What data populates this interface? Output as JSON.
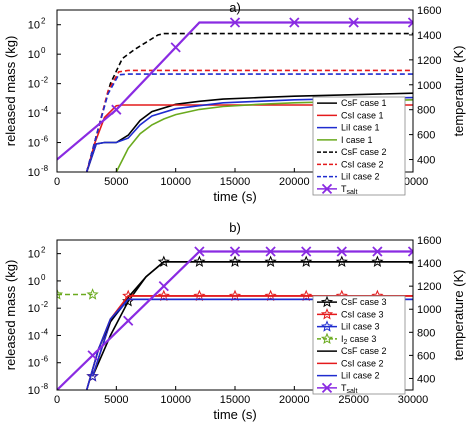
{
  "chart_data": [
    {
      "type": "line",
      "panel_label": "a)",
      "xlabel": "time (s)",
      "ylabel": "released mass (kg)",
      "y2label": "temperature (K)",
      "xlim": [
        0,
        30000
      ],
      "ylim_log10": [
        -8,
        3
      ],
      "y2lim": [
        300,
        1600
      ],
      "xticks": [
        0,
        5000,
        10000,
        15000,
        20000,
        25000,
        30000
      ],
      "xtick_labels": [
        "0",
        "5000",
        "10000",
        "15000",
        "20000",
        "25000",
        "30000"
      ],
      "yticks_log10": [
        -8,
        -6,
        -4,
        -2,
        0,
        2
      ],
      "ytick_labels": [
        "10",
        "10",
        "10",
        "10",
        "10",
        "10"
      ],
      "ytick_exponents": [
        "-8",
        "-6",
        "-4",
        "-2",
        "0",
        "2"
      ],
      "y2ticks": [
        400,
        600,
        800,
        1000,
        1200,
        1400,
        1600
      ],
      "legend_position": "lower-right",
      "series": [
        {
          "name": "CsF case 1",
          "color": "#000000",
          "dash": "solid",
          "axis": "left",
          "x": [
            2500,
            3300,
            4000,
            5000,
            6000,
            7000,
            8000,
            10000,
            12000,
            14000,
            17000,
            20000,
            25000,
            30000
          ],
          "log10y": [
            -8,
            -6.1,
            -6,
            -6,
            -5.5,
            -4.5,
            -3.9,
            -3.4,
            -3.2,
            -3.05,
            -2.95,
            -2.85,
            -2.75,
            -2.65
          ]
        },
        {
          "name": "CsI case 1",
          "color": "#e41a1c",
          "dash": "solid",
          "axis": "left",
          "x": [
            2500,
            3200,
            4000,
            5000,
            5500,
            30000
          ],
          "log10y": [
            -8,
            -6,
            -4.3,
            -3.5,
            -3.45,
            -3.45
          ]
        },
        {
          "name": "LiI case 1",
          "color": "#1f2ccf",
          "dash": "solid",
          "axis": "left",
          "x": [
            2500,
            3300,
            4000,
            5000,
            6000,
            7000,
            8000,
            10000,
            12000,
            14000,
            17000,
            20000,
            25000,
            30000
          ],
          "log10y": [
            -8,
            -6.1,
            -6,
            -6,
            -5.7,
            -4.8,
            -4.2,
            -3.7,
            -3.5,
            -3.3,
            -3.2,
            -3.1,
            -3.0,
            -2.95
          ]
        },
        {
          "name": "I case 1",
          "color": "#6aaa1e",
          "dash": "solid",
          "axis": "left",
          "x": [
            5000,
            6000,
            7000,
            8000,
            9000,
            10000,
            12000,
            14000,
            17000,
            20000,
            25000,
            30000
          ],
          "log10y": [
            -8,
            -6.4,
            -5.4,
            -4.8,
            -4.4,
            -4.1,
            -3.75,
            -3.55,
            -3.4,
            -3.3,
            -3.2,
            -3.1
          ]
        },
        {
          "name": "CsF case 2",
          "color": "#000000",
          "dash": "dashed",
          "axis": "left",
          "x": [
            2500,
            3500,
            4500,
            5500,
            6500,
            7500,
            8500,
            9000,
            30000
          ],
          "log10y": [
            -8,
            -5,
            -2,
            -0.3,
            0.3,
            0.8,
            1.3,
            1.4,
            1.4
          ]
        },
        {
          "name": "CsI case 2",
          "color": "#e41a1c",
          "dash": "dashed",
          "axis": "left",
          "x": [
            2500,
            3500,
            4300,
            5200,
            6000,
            30000
          ],
          "log10y": [
            -8,
            -5,
            -2.5,
            -1.2,
            -1.1,
            -1.1
          ]
        },
        {
          "name": "LiI case 2",
          "color": "#1f2ccf",
          "dash": "dashed",
          "axis": "left",
          "x": [
            2500,
            3500,
            4300,
            5200,
            6000,
            30000
          ],
          "log10y": [
            -8,
            -5,
            -2.7,
            -1.4,
            -1.35,
            -1.35
          ]
        },
        {
          "name": "T_salt",
          "color": "#8a2be2",
          "dash": "solid",
          "axis": "right",
          "marker": "x",
          "x": [
            0,
            5000,
            10000,
            12000,
            30000
          ],
          "y": [
            400,
            800,
            1300,
            1500,
            1500
          ],
          "marker_x": [
            5000,
            10000,
            15000,
            20000,
            25000,
            30000
          ],
          "marker_y": [
            800,
            1300,
            1500,
            1500,
            1500,
            1500
          ]
        }
      ]
    },
    {
      "type": "line",
      "panel_label": "b)",
      "xlabel": "time (s)",
      "ylabel": "released mass (kg)",
      "y2label": "temperature (K)",
      "xlim": [
        0,
        30000
      ],
      "ylim_log10": [
        -8,
        3
      ],
      "y2lim": [
        300,
        1600
      ],
      "xticks": [
        0,
        5000,
        10000,
        15000,
        20000,
        25000,
        30000
      ],
      "xtick_labels": [
        "0",
        "5000",
        "10000",
        "15000",
        "20000",
        "25000",
        "30000"
      ],
      "yticks_log10": [
        -8,
        -6,
        -4,
        -2,
        0,
        2
      ],
      "ytick_labels": [
        "10",
        "10",
        "10",
        "10",
        "10",
        "10"
      ],
      "ytick_exponents": [
        "-8",
        "-6",
        "-4",
        "-2",
        "0",
        "2"
      ],
      "y2ticks": [
        400,
        600,
        800,
        1000,
        1200,
        1400,
        1600
      ],
      "legend_position": "lower-right",
      "series": [
        {
          "name": "CsF case 3",
          "color": "#000000",
          "dash": "solid",
          "axis": "left",
          "marker": "star",
          "x": [
            3000,
            4500,
            6000,
            7500,
            9000,
            30000
          ],
          "log10y": [
            -7,
            -4,
            -1.5,
            0.3,
            1.4,
            1.4
          ],
          "marker_x": [
            3000,
            6000,
            9000,
            12000,
            15000,
            18000,
            21000,
            24000,
            27000
          ],
          "marker_log10y": [
            -7,
            -1.5,
            1.4,
            1.4,
            1.4,
            1.4,
            1.4,
            1.4,
            1.4
          ]
        },
        {
          "name": "CsI case 3",
          "color": "#e41a1c",
          "dash": "solid",
          "axis": "left",
          "marker": "star",
          "x": [
            3000,
            4500,
            6000,
            30000
          ],
          "log10y": [
            -7,
            -3,
            -1.1,
            -1.1
          ],
          "marker_x": [
            3000,
            6000,
            9000,
            12000,
            15000,
            18000,
            21000,
            24000,
            27000
          ],
          "marker_log10y": [
            -7,
            -1.1,
            -1.1,
            -1.1,
            -1.1,
            -1.1,
            -1.1,
            -1.1,
            -1.1
          ]
        },
        {
          "name": "LiI case 3",
          "color": "#1f2ccf",
          "dash": "solid",
          "axis": "left",
          "marker": "star",
          "x": [
            3000,
            4500,
            6000,
            30000
          ],
          "log10y": [
            -7,
            -3,
            -1.35,
            -1.35
          ],
          "marker_x": [
            3000
          ],
          "marker_log10y": [
            -7
          ]
        },
        {
          "name": "I2 case 3",
          "color": "#6aaa1e",
          "dash": "dashed",
          "axis": "left",
          "marker": "star",
          "x": [
            0,
            3000
          ],
          "log10y": [
            -1,
            -1
          ],
          "marker_x": [
            0,
            3000
          ],
          "marker_log10y": [
            -1,
            -1
          ]
        },
        {
          "name": "CsF case 2",
          "color": "#000000",
          "dash": "solid",
          "axis": "left",
          "x": [
            2500,
            3500,
            4500,
            6000,
            7500,
            9000,
            30000
          ],
          "log10y": [
            -8,
            -5,
            -3,
            -1.2,
            0.3,
            1.4,
            1.4
          ]
        },
        {
          "name": "CsI case 2",
          "color": "#e41a1c",
          "dash": "solid",
          "axis": "left",
          "x": [
            2500,
            3500,
            4500,
            6000,
            30000
          ],
          "log10y": [
            -8,
            -5,
            -2.8,
            -1.1,
            -1.1
          ]
        },
        {
          "name": "LiI case 2",
          "color": "#1f2ccf",
          "dash": "solid",
          "axis": "left",
          "x": [
            2500,
            3500,
            4500,
            6000,
            30000
          ],
          "log10y": [
            -8,
            -5,
            -2.8,
            -1.35,
            -1.35
          ]
        },
        {
          "name": "T_salt",
          "color": "#8a2be2",
          "dash": "solid",
          "axis": "right",
          "marker": "x",
          "x": [
            0,
            3000,
            6000,
            9000,
            12000,
            30000
          ],
          "y": [
            300,
            600,
            900,
            1200,
            1500,
            1500
          ],
          "marker_x": [
            3000,
            6000,
            9000,
            12000,
            15000,
            18000,
            21000,
            24000,
            27000,
            30000
          ],
          "marker_y": [
            600,
            900,
            1200,
            1500,
            1500,
            1500,
            1500,
            1500,
            1500,
            1500
          ]
        }
      ]
    }
  ],
  "legend_a": [
    {
      "label": "CsF case 1",
      "color": "#000000",
      "dash": "solid",
      "marker": "none"
    },
    {
      "label": "CsI case 1",
      "color": "#e41a1c",
      "dash": "solid",
      "marker": "none"
    },
    {
      "label": "LiI case 1",
      "color": "#1f2ccf",
      "dash": "solid",
      "marker": "none"
    },
    {
      "label": "I case 1",
      "color": "#6aaa1e",
      "dash": "solid",
      "marker": "none"
    },
    {
      "label": "CsF case 2",
      "color": "#000000",
      "dash": "dashed",
      "marker": "none"
    },
    {
      "label": "CsI case 2",
      "color": "#e41a1c",
      "dash": "dashed",
      "marker": "none"
    },
    {
      "label": "LiI case 2",
      "color": "#1f2ccf",
      "dash": "dashed",
      "marker": "none"
    },
    {
      "label": "T",
      "sub": "salt",
      "color": "#8a2be2",
      "dash": "solid",
      "marker": "x"
    }
  ],
  "legend_b": [
    {
      "label": "CsF case 3",
      "color": "#000000",
      "dash": "solid",
      "marker": "star"
    },
    {
      "label": "CsI case 3",
      "color": "#e41a1c",
      "dash": "solid",
      "marker": "star"
    },
    {
      "label": "LiI case 3",
      "color": "#1f2ccf",
      "dash": "solid",
      "marker": "star"
    },
    {
      "label": "I",
      "sub": "2",
      "suffix": " case 3",
      "color": "#6aaa1e",
      "dash": "dashed",
      "marker": "star"
    },
    {
      "label": "CsF case 2",
      "color": "#000000",
      "dash": "solid",
      "marker": "none"
    },
    {
      "label": "CsI case 2",
      "color": "#e41a1c",
      "dash": "solid",
      "marker": "none"
    },
    {
      "label": "LiI case 2",
      "color": "#1f2ccf",
      "dash": "solid",
      "marker": "none"
    },
    {
      "label": "T",
      "sub": "salt",
      "color": "#8a2be2",
      "dash": "solid",
      "marker": "x"
    }
  ]
}
